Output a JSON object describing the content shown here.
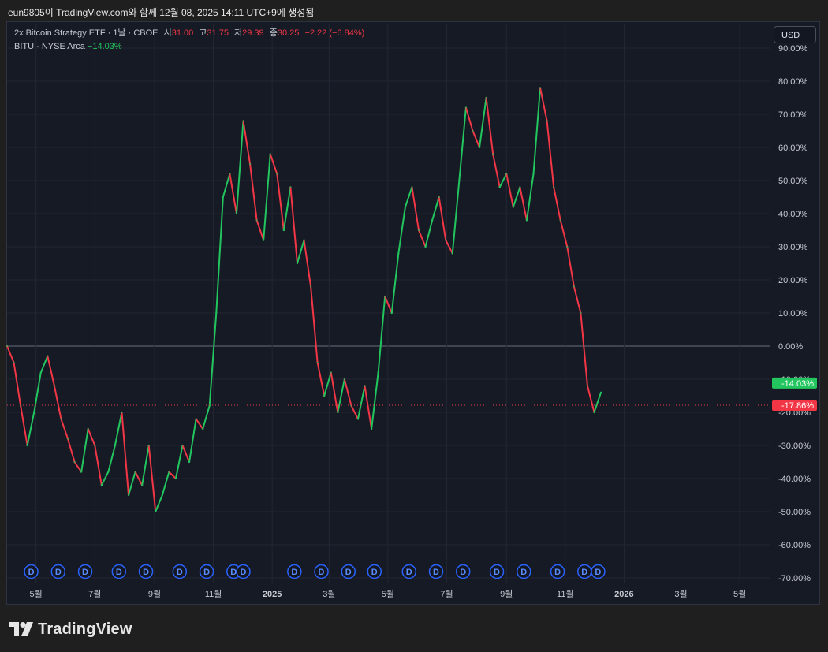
{
  "caption": "eun9805이 TradingView.com와 함께 12월 08, 2025 14:11 UTC+9에 생성됨",
  "legend": {
    "title": "2x Bitcoin Strategy ETF · 1날 · CBOE",
    "open_label": "시",
    "open_value": "31.00",
    "high_label": "고",
    "high_value": "31.75",
    "low_label": "저",
    "low_value": "29.39",
    "close_label": "종",
    "close_value": "30.25",
    "change": "−2.22 (−6.84%)",
    "line2_symbol": "BITU · NYSE Arca",
    "line2_change": "−14.03%"
  },
  "currency_button": "USD",
  "brand": {
    "logo_icon": "tradingview-logo-icon",
    "name": "TradingView"
  },
  "colors": {
    "background": "#161a25",
    "up": "#22c55e",
    "down": "#f23645",
    "zero_line": "#6b6f7a",
    "grid": "#242733",
    "dividend_marker": "#2962ff"
  },
  "chart_data": {
    "type": "line",
    "y_unit": "%",
    "ylim": [
      -70,
      90
    ],
    "y_ticks": [
      "90.00%",
      "80.00%",
      "70.00%",
      "60.00%",
      "50.00%",
      "40.00%",
      "30.00%",
      "20.00%",
      "10.00%",
      "0.00%",
      "-10.00%",
      "-20.00%",
      "-30.00%",
      "-40.00%",
      "-50.00%",
      "-60.00%",
      "-70.00%"
    ],
    "x_ticks": [
      "5월",
      "7월",
      "9월",
      "11월",
      "2025",
      "3월",
      "5월",
      "7월",
      "9월",
      "11월",
      "2026",
      "3월",
      "5월"
    ],
    "grid": true,
    "series": [
      {
        "color_mode": "up-down",
        "x": [
          "2024-04-01",
          "2024-04-08",
          "2024-04-15",
          "2024-04-22",
          "2024-04-29",
          "2024-05-06",
          "2024-05-13",
          "2024-05-20",
          "2024-05-27",
          "2024-06-03",
          "2024-06-10",
          "2024-06-17",
          "2024-06-24",
          "2024-07-01",
          "2024-07-08",
          "2024-07-15",
          "2024-07-22",
          "2024-07-29",
          "2024-08-05",
          "2024-08-12",
          "2024-08-19",
          "2024-08-26",
          "2024-09-02",
          "2024-09-09",
          "2024-09-16",
          "2024-09-23",
          "2024-09-30",
          "2024-10-07",
          "2024-10-14",
          "2024-10-21",
          "2024-10-28",
          "2024-11-04",
          "2024-11-11",
          "2024-11-18",
          "2024-11-25",
          "2024-12-02",
          "2024-12-09",
          "2024-12-16",
          "2024-12-23",
          "2024-12-30",
          "2025-01-06",
          "2025-01-13",
          "2025-01-20",
          "2025-01-27",
          "2025-02-03",
          "2025-02-10",
          "2025-02-17",
          "2025-02-24",
          "2025-03-03",
          "2025-03-10",
          "2025-03-17",
          "2025-03-24",
          "2025-03-31",
          "2025-04-07",
          "2025-04-14",
          "2025-04-21",
          "2025-04-28",
          "2025-05-05",
          "2025-05-12",
          "2025-05-19",
          "2025-05-26",
          "2025-06-02",
          "2025-06-09",
          "2025-06-16",
          "2025-06-23",
          "2025-06-30",
          "2025-07-07",
          "2025-07-14",
          "2025-07-21",
          "2025-07-28",
          "2025-08-04",
          "2025-08-11",
          "2025-08-18",
          "2025-08-25",
          "2025-09-01",
          "2025-09-08",
          "2025-09-15",
          "2025-09-22",
          "2025-09-29",
          "2025-10-06",
          "2025-10-13",
          "2025-10-20",
          "2025-10-27",
          "2025-11-03",
          "2025-11-10",
          "2025-11-17",
          "2025-11-24",
          "2025-12-01",
          "2025-12-08"
        ],
        "y": [
          0,
          -5,
          -18,
          -30,
          -20,
          -8,
          -3,
          -12,
          -22,
          -28,
          -35,
          -38,
          -25,
          -30,
          -42,
          -38,
          -30,
          -20,
          -45,
          -38,
          -42,
          -30,
          -50,
          -45,
          -38,
          -40,
          -30,
          -35,
          -22,
          -25,
          -18,
          10,
          45,
          52,
          40,
          68,
          55,
          38,
          32,
          58,
          52,
          35,
          48,
          25,
          32,
          18,
          -5,
          -15,
          -8,
          -20,
          -10,
          -18,
          -22,
          -12,
          -25,
          -8,
          15,
          10,
          28,
          42,
          48,
          35,
          30,
          38,
          45,
          32,
          28,
          50,
          72,
          65,
          60,
          75,
          58,
          48,
          52,
          42,
          48,
          38,
          52,
          78,
          68,
          48,
          38,
          30,
          18,
          10,
          -12,
          -20,
          -14
        ]
      }
    ],
    "reference_lines": [
      {
        "label": "-14.03%",
        "value": -14.03,
        "color": "#22c55e"
      },
      {
        "label": "-17.86%",
        "value": -17.86,
        "color": "#f23645"
      }
    ],
    "dividend_markers": {
      "label": "D",
      "dates": [
        "2024-04-26",
        "2024-05-24",
        "2024-06-21",
        "2024-07-26",
        "2024-08-23",
        "2024-09-27",
        "2024-10-25",
        "2024-11-22",
        "2024-12-02",
        "2025-01-24",
        "2025-02-21",
        "2025-03-21",
        "2025-04-17",
        "2025-05-23",
        "2025-06-20",
        "2025-07-18",
        "2025-08-22",
        "2025-09-19",
        "2025-10-24",
        "2025-11-21",
        "2025-12-05"
      ]
    }
  }
}
